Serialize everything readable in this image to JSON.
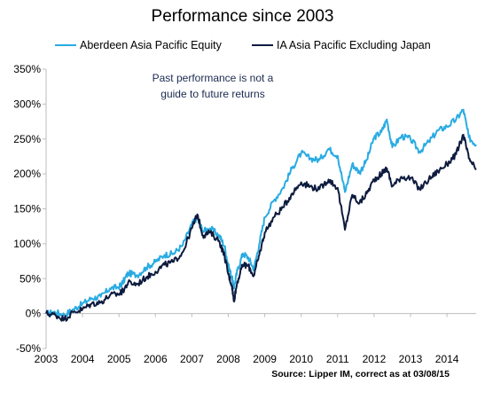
{
  "chart_data": {
    "type": "line",
    "title": "Performance since 2003",
    "xlabel": "",
    "ylabel": "",
    "annotation": "Past performance is not a guide to future returns",
    "source": "Source: Lipper IM, correct as at 03/08/15",
    "xlim": [
      2003.0,
      2014.8
    ],
    "ylim": [
      -50,
      350
    ],
    "y_ticks": [
      "-50%",
      "0%",
      "50%",
      "100%",
      "150%",
      "200%",
      "250%",
      "300%",
      "350%"
    ],
    "x_ticks": [
      "2003",
      "2004",
      "2005",
      "2006",
      "2007",
      "2008",
      "2009",
      "2010",
      "2011",
      "2012",
      "2013",
      "2014"
    ],
    "grid": false,
    "legend_position": "top",
    "series": [
      {
        "name": "Aberdeen Asia Pacific Equity",
        "color": "#29abe2",
        "points": [
          [
            2003.0,
            0
          ],
          [
            2003.25,
            2
          ],
          [
            2003.5,
            -2
          ],
          [
            2003.75,
            6
          ],
          [
            2004.0,
            14
          ],
          [
            2004.25,
            22
          ],
          [
            2004.5,
            24
          ],
          [
            2004.75,
            36
          ],
          [
            2005.0,
            38
          ],
          [
            2005.1,
            44
          ],
          [
            2005.25,
            58
          ],
          [
            2005.5,
            55
          ],
          [
            2005.75,
            66
          ],
          [
            2006.0,
            74
          ],
          [
            2006.25,
            84
          ],
          [
            2006.5,
            86
          ],
          [
            2006.75,
            98
          ],
          [
            2007.0,
            128
          ],
          [
            2007.15,
            138
          ],
          [
            2007.3,
            118
          ],
          [
            2007.5,
            122
          ],
          [
            2007.75,
            112
          ],
          [
            2007.9,
            96
          ],
          [
            2008.0,
            68
          ],
          [
            2008.1,
            52
          ],
          [
            2008.15,
            36
          ],
          [
            2008.25,
            62
          ],
          [
            2008.4,
            86
          ],
          [
            2008.55,
            80
          ],
          [
            2008.7,
            64
          ],
          [
            2008.85,
            100
          ],
          [
            2009.0,
            138
          ],
          [
            2009.25,
            162
          ],
          [
            2009.5,
            180
          ],
          [
            2009.75,
            208
          ],
          [
            2010.0,
            230
          ],
          [
            2010.25,
            222
          ],
          [
            2010.5,
            220
          ],
          [
            2010.75,
            236
          ],
          [
            2011.0,
            226
          ],
          [
            2011.2,
            174
          ],
          [
            2011.4,
            214
          ],
          [
            2011.6,
            202
          ],
          [
            2011.8,
            220
          ],
          [
            2012.0,
            252
          ],
          [
            2012.2,
            260
          ],
          [
            2012.35,
            278
          ],
          [
            2012.5,
            238
          ],
          [
            2012.75,
            254
          ],
          [
            2013.0,
            250
          ],
          [
            2013.25,
            232
          ],
          [
            2013.5,
            246
          ],
          [
            2013.75,
            262
          ],
          [
            2014.0,
            268
          ],
          [
            2014.25,
            278
          ],
          [
            2014.45,
            292
          ],
          [
            2014.6,
            252
          ],
          [
            2014.8,
            242
          ]
        ]
      },
      {
        "name": "IA Asia Pacific Excluding Japan",
        "color": "#0d1b3e",
        "points": [
          [
            2003.0,
            0
          ],
          [
            2003.25,
            -2
          ],
          [
            2003.5,
            -8
          ],
          [
            2003.75,
            2
          ],
          [
            2004.0,
            6
          ],
          [
            2004.25,
            14
          ],
          [
            2004.5,
            16
          ],
          [
            2004.75,
            26
          ],
          [
            2005.0,
            28
          ],
          [
            2005.1,
            32
          ],
          [
            2005.25,
            44
          ],
          [
            2005.5,
            42
          ],
          [
            2005.75,
            52
          ],
          [
            2006.0,
            60
          ],
          [
            2006.25,
            70
          ],
          [
            2006.5,
            74
          ],
          [
            2006.75,
            88
          ],
          [
            2007.0,
            122
          ],
          [
            2007.15,
            142
          ],
          [
            2007.3,
            112
          ],
          [
            2007.5,
            116
          ],
          [
            2007.75,
            104
          ],
          [
            2007.9,
            82
          ],
          [
            2008.0,
            56
          ],
          [
            2008.1,
            40
          ],
          [
            2008.15,
            18
          ],
          [
            2008.25,
            46
          ],
          [
            2008.4,
            70
          ],
          [
            2008.55,
            68
          ],
          [
            2008.7,
            54
          ],
          [
            2008.85,
            84
          ],
          [
            2009.0,
            116
          ],
          [
            2009.25,
            138
          ],
          [
            2009.5,
            152
          ],
          [
            2009.75,
            172
          ],
          [
            2010.0,
            188
          ],
          [
            2010.25,
            182
          ],
          [
            2010.5,
            178
          ],
          [
            2010.75,
            192
          ],
          [
            2011.0,
            180
          ],
          [
            2011.2,
            120
          ],
          [
            2011.4,
            170
          ],
          [
            2011.6,
            158
          ],
          [
            2011.8,
            172
          ],
          [
            2012.0,
            192
          ],
          [
            2012.2,
            200
          ],
          [
            2012.35,
            208
          ],
          [
            2012.5,
            182
          ],
          [
            2012.75,
            196
          ],
          [
            2013.0,
            194
          ],
          [
            2013.25,
            178
          ],
          [
            2013.5,
            192
          ],
          [
            2013.75,
            204
          ],
          [
            2014.0,
            214
          ],
          [
            2014.25,
            228
          ],
          [
            2014.45,
            256
          ],
          [
            2014.6,
            222
          ],
          [
            2014.8,
            206
          ]
        ]
      }
    ]
  }
}
